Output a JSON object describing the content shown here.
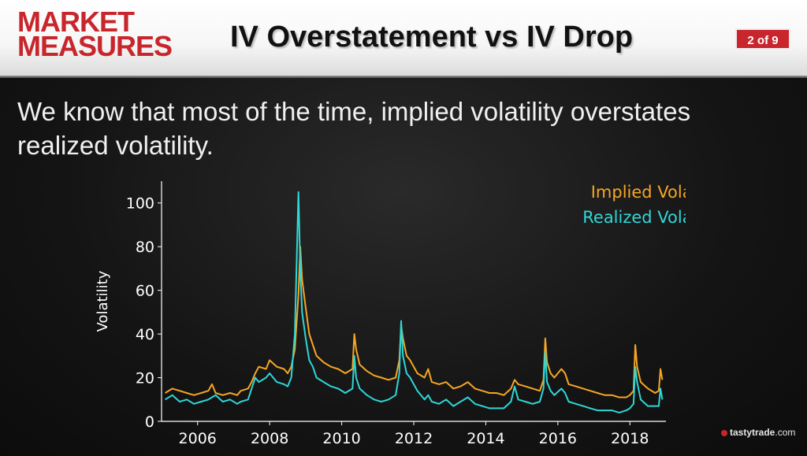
{
  "logo": {
    "line1": "MARKET",
    "line2": "MEASURES"
  },
  "slide": {
    "title": "IV Overstatement vs IV Drop",
    "page": "2 of 9",
    "body": "We know that most of the time, implied volatility overstates realized volatility."
  },
  "brand": {
    "name": "tastytrade",
    "suffix": ".com"
  },
  "colors": {
    "accent": "#c8262c",
    "implied": "#f5a623",
    "realized": "#2fd7d7"
  },
  "chart_data": {
    "type": "line",
    "title": "",
    "xlabel": "",
    "ylabel": "Volatility",
    "xlim": [
      2005,
      2019
    ],
    "ylim": [
      0,
      110
    ],
    "xticks": [
      "2006",
      "2008",
      "2010",
      "2012",
      "2014",
      "2016",
      "2018"
    ],
    "yticks": [
      "0",
      "20",
      "40",
      "60",
      "80",
      "100"
    ],
    "legend_position": "top-right",
    "series": [
      {
        "name": "Implied Volatility",
        "color": "#f5a623",
        "x": [
          2005.1,
          2005.3,
          2005.5,
          2005.7,
          2005.9,
          2006.1,
          2006.3,
          2006.4,
          2006.5,
          2006.7,
          2006.9,
          2007.1,
          2007.2,
          2007.4,
          2007.5,
          2007.6,
          2007.7,
          2007.9,
          2008.0,
          2008.2,
          2008.4,
          2008.5,
          2008.6,
          2008.7,
          2008.8,
          2008.85,
          2008.9,
          2009.0,
          2009.1,
          2009.2,
          2009.3,
          2009.5,
          2009.7,
          2009.9,
          2010.1,
          2010.3,
          2010.35,
          2010.4,
          2010.5,
          2010.7,
          2010.9,
          2011.1,
          2011.3,
          2011.5,
          2011.6,
          2011.65,
          2011.7,
          2011.8,
          2011.9,
          2012.1,
          2012.3,
          2012.4,
          2012.5,
          2012.7,
          2012.9,
          2013.1,
          2013.3,
          2013.5,
          2013.7,
          2013.9,
          2014.1,
          2014.3,
          2014.5,
          2014.7,
          2014.8,
          2014.9,
          2015.1,
          2015.3,
          2015.5,
          2015.6,
          2015.65,
          2015.7,
          2015.8,
          2015.9,
          2016.1,
          2016.2,
          2016.3,
          2016.5,
          2016.7,
          2016.9,
          2017.1,
          2017.3,
          2017.5,
          2017.7,
          2017.9,
          2018.0,
          2018.1,
          2018.15,
          2018.2,
          2018.3,
          2018.5,
          2018.7,
          2018.8,
          2018.85,
          2018.9
        ],
        "y": [
          13,
          15,
          14,
          13,
          12,
          13,
          14,
          17,
          13,
          12,
          13,
          12,
          14,
          15,
          18,
          22,
          25,
          24,
          28,
          25,
          24,
          22,
          25,
          33,
          58,
          80,
          65,
          52,
          40,
          35,
          30,
          27,
          25,
          24,
          22,
          24,
          40,
          33,
          26,
          23,
          21,
          20,
          19,
          20,
          28,
          44,
          38,
          30,
          28,
          22,
          20,
          24,
          18,
          17,
          18,
          15,
          16,
          18,
          15,
          14,
          13,
          13,
          12,
          15,
          19,
          17,
          16,
          15,
          14,
          19,
          38,
          27,
          22,
          20,
          24,
          22,
          17,
          16,
          15,
          14,
          13,
          12,
          12,
          11,
          11,
          12,
          14,
          35,
          25,
          18,
          15,
          13,
          14,
          24,
          19
        ]
      },
      {
        "name": "Realized Volatility",
        "color": "#2fd7d7",
        "x": [
          2005.1,
          2005.3,
          2005.5,
          2005.7,
          2005.9,
          2006.1,
          2006.3,
          2006.4,
          2006.5,
          2006.7,
          2006.9,
          2007.1,
          2007.2,
          2007.4,
          2007.5,
          2007.6,
          2007.7,
          2007.9,
          2008.0,
          2008.2,
          2008.4,
          2008.5,
          2008.6,
          2008.7,
          2008.8,
          2008.85,
          2008.9,
          2009.0,
          2009.1,
          2009.2,
          2009.3,
          2009.5,
          2009.7,
          2009.9,
          2010.1,
          2010.3,
          2010.35,
          2010.4,
          2010.5,
          2010.7,
          2010.9,
          2011.1,
          2011.3,
          2011.5,
          2011.6,
          2011.65,
          2011.7,
          2011.8,
          2011.9,
          2012.1,
          2012.3,
          2012.4,
          2012.5,
          2012.7,
          2012.9,
          2013.1,
          2013.3,
          2013.5,
          2013.7,
          2013.9,
          2014.1,
          2014.3,
          2014.5,
          2014.7,
          2014.8,
          2014.9,
          2015.1,
          2015.3,
          2015.5,
          2015.6,
          2015.65,
          2015.7,
          2015.8,
          2015.9,
          2016.1,
          2016.2,
          2016.3,
          2016.5,
          2016.7,
          2016.9,
          2017.1,
          2017.3,
          2017.5,
          2017.7,
          2017.9,
          2018.0,
          2018.1,
          2018.15,
          2018.2,
          2018.3,
          2018.5,
          2018.7,
          2018.8,
          2018.85,
          2018.9
        ],
        "y": [
          10,
          12,
          9,
          10,
          8,
          9,
          10,
          11,
          12,
          9,
          10,
          8,
          9,
          10,
          15,
          20,
          18,
          20,
          22,
          18,
          17,
          16,
          20,
          40,
          105,
          70,
          50,
          38,
          28,
          25,
          20,
          18,
          16,
          15,
          13,
          15,
          30,
          20,
          15,
          12,
          10,
          9,
          10,
          12,
          22,
          46,
          30,
          22,
          20,
          14,
          10,
          12,
          9,
          8,
          10,
          7,
          9,
          11,
          8,
          7,
          6,
          6,
          6,
          9,
          16,
          10,
          9,
          8,
          9,
          15,
          32,
          18,
          14,
          12,
          15,
          13,
          9,
          8,
          7,
          6,
          5,
          5,
          5,
          4,
          5,
          6,
          8,
          25,
          18,
          10,
          7,
          7,
          7,
          15,
          10
        ]
      }
    ]
  }
}
